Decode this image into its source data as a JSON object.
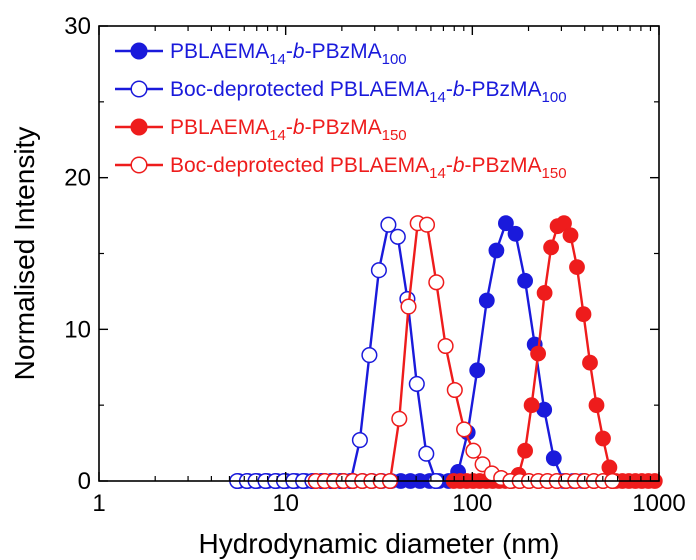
{
  "chart_data": {
    "type": "scatter",
    "title": "",
    "xlabel": "Hydrodynamic diameter (nm)",
    "ylabel": "Normalised Intensity",
    "xscale": "log",
    "xlim": [
      1,
      1000
    ],
    "ylim": [
      0,
      30
    ],
    "xticks": [
      1,
      10,
      100,
      1000
    ],
    "xtick_labels": [
      "1",
      "10",
      "100",
      "1000"
    ],
    "yticks": [
      0,
      10,
      20,
      30
    ],
    "ytick_labels": [
      "0",
      "10",
      "20",
      "30"
    ],
    "grid": false,
    "legend_position": "top-left",
    "series": [
      {
        "name": "PBLAEMA14-b-PBzMA100",
        "legend": [
          {
            "text": "PBLAEMA",
            "style": "normal"
          },
          {
            "text": "14",
            "style": "sub"
          },
          {
            "text": "-",
            "style": "normal"
          },
          {
            "text": "b",
            "style": "italic"
          },
          {
            "text": "-PBzMA",
            "style": "normal"
          },
          {
            "text": "100",
            "style": "sub"
          }
        ],
        "color": "#1a1adb",
        "marker": "filled-circle",
        "x": [
          5.6,
          6.3,
          7.1,
          8.0,
          9.0,
          10.1,
          11.4,
          12.8,
          14.4,
          16.2,
          18.2,
          20.5,
          23.0,
          25.9,
          29.1,
          32.8,
          36.8,
          41.4,
          46.6,
          52.4,
          59.0,
          66.3,
          74.6,
          83.9,
          94.4,
          106.2,
          119.5,
          134.5,
          151.3,
          170.3,
          191.7,
          215.7,
          242.7,
          273.2,
          307.5,
          346.0,
          389.4
        ],
        "y": [
          0,
          0,
          0,
          0,
          0,
          0,
          0,
          0,
          0,
          0,
          0,
          0,
          0,
          0,
          0,
          0,
          0,
          0,
          0,
          0,
          0,
          0,
          0,
          0.6,
          3.2,
          7.3,
          11.9,
          15.2,
          17.0,
          16.3,
          13.2,
          9.0,
          4.7,
          1.5,
          0,
          0,
          0
        ]
      },
      {
        "name": "Boc-deprotected PBLAEMA14-b-PBzMA100",
        "legend": [
          {
            "text": "Boc-deprotected PBLAEMA",
            "style": "normal"
          },
          {
            "text": "14",
            "style": "sub"
          },
          {
            "text": "-",
            "style": "normal"
          },
          {
            "text": "b",
            "style": "italic"
          },
          {
            "text": "-PBzMA",
            "style": "normal"
          },
          {
            "text": "100",
            "style": "sub"
          }
        ],
        "color": "#1a1adb",
        "marker": "open-circle",
        "x": [
          5.5,
          6.2,
          6.9,
          7.8,
          8.8,
          9.8,
          11.0,
          12.4,
          13.9,
          15.6,
          17.6,
          19.8,
          22.3,
          25.0,
          28.1,
          31.6,
          35.5,
          39.9,
          44.9,
          50.4,
          56.7,
          63.7
        ],
        "y": [
          0,
          0,
          0,
          0,
          0,
          0,
          0,
          0,
          0,
          0,
          0,
          0,
          0,
          2.7,
          8.3,
          13.9,
          16.9,
          16.1,
          12.0,
          6.4,
          1.8,
          0
        ]
      },
      {
        "name": "PBLAEMA14-b-PBzMA150",
        "legend": [
          {
            "text": "PBLAEMA",
            "style": "normal"
          },
          {
            "text": "14",
            "style": "sub"
          },
          {
            "text": "-",
            "style": "normal"
          },
          {
            "text": "b",
            "style": "italic"
          },
          {
            "text": "-PBzMA",
            "style": "normal"
          },
          {
            "text": "150",
            "style": "sub"
          }
        ],
        "color": "#ee1c1c",
        "marker": "filled-circle",
        "x": [
          79.5,
          86.1,
          93.3,
          101.1,
          109.5,
          118.6,
          128.5,
          139.2,
          150.8,
          163.4,
          177.0,
          191.7,
          207.7,
          225.0,
          243.8,
          264.1,
          286.1,
          309.9,
          335.7,
          363.7,
          394.0,
          426.8,
          462.4,
          500.9,
          542.6,
          587.8,
          636.8,
          689.8,
          747.3,
          809.6,
          877.0,
          950.0
        ],
        "y": [
          0,
          0,
          0,
          0,
          0,
          0,
          0,
          0,
          0,
          0,
          0.4,
          2.0,
          5.0,
          8.4,
          12.4,
          15.4,
          16.8,
          17.0,
          16.2,
          14.1,
          11.0,
          7.8,
          5.0,
          2.8,
          0.9,
          0,
          0,
          0,
          0,
          0,
          0,
          0
        ]
      },
      {
        "name": "Boc-deprotected PBLAEMA14-b-PBzMA150",
        "legend": [
          {
            "text": "Boc-deprotected PBLAEMA",
            "style": "normal"
          },
          {
            "text": "14",
            "style": "sub"
          },
          {
            "text": "-",
            "style": "normal"
          },
          {
            "text": "b",
            "style": "italic"
          },
          {
            "text": "-PBzMA",
            "style": "normal"
          },
          {
            "text": "150",
            "style": "sub"
          }
        ],
        "color": "#ee1c1c",
        "marker": "open-circle",
        "x": [
          14.5,
          16.2,
          18.2,
          20.4,
          22.9,
          25.7,
          28.8,
          32.3,
          36.2,
          40.6,
          45.5,
          51.0,
          57.2,
          64.1,
          71.9,
          80.6,
          90.3,
          101.3,
          113.5,
          127.3,
          142.7,
          160.0,
          179.4,
          201.1,
          225.5,
          252.8,
          283.4,
          317.7,
          356.2,
          399.3,
          447.7,
          501.9,
          562.7
        ],
        "y": [
          0,
          0,
          0,
          0,
          0,
          0,
          0,
          0,
          0,
          4.1,
          11.5,
          17.0,
          16.9,
          13.1,
          8.9,
          6.0,
          3.4,
          2.0,
          1.1,
          0.5,
          0.2,
          0,
          0,
          0,
          0,
          0,
          0,
          0,
          0,
          0,
          0,
          0,
          0
        ]
      }
    ]
  }
}
